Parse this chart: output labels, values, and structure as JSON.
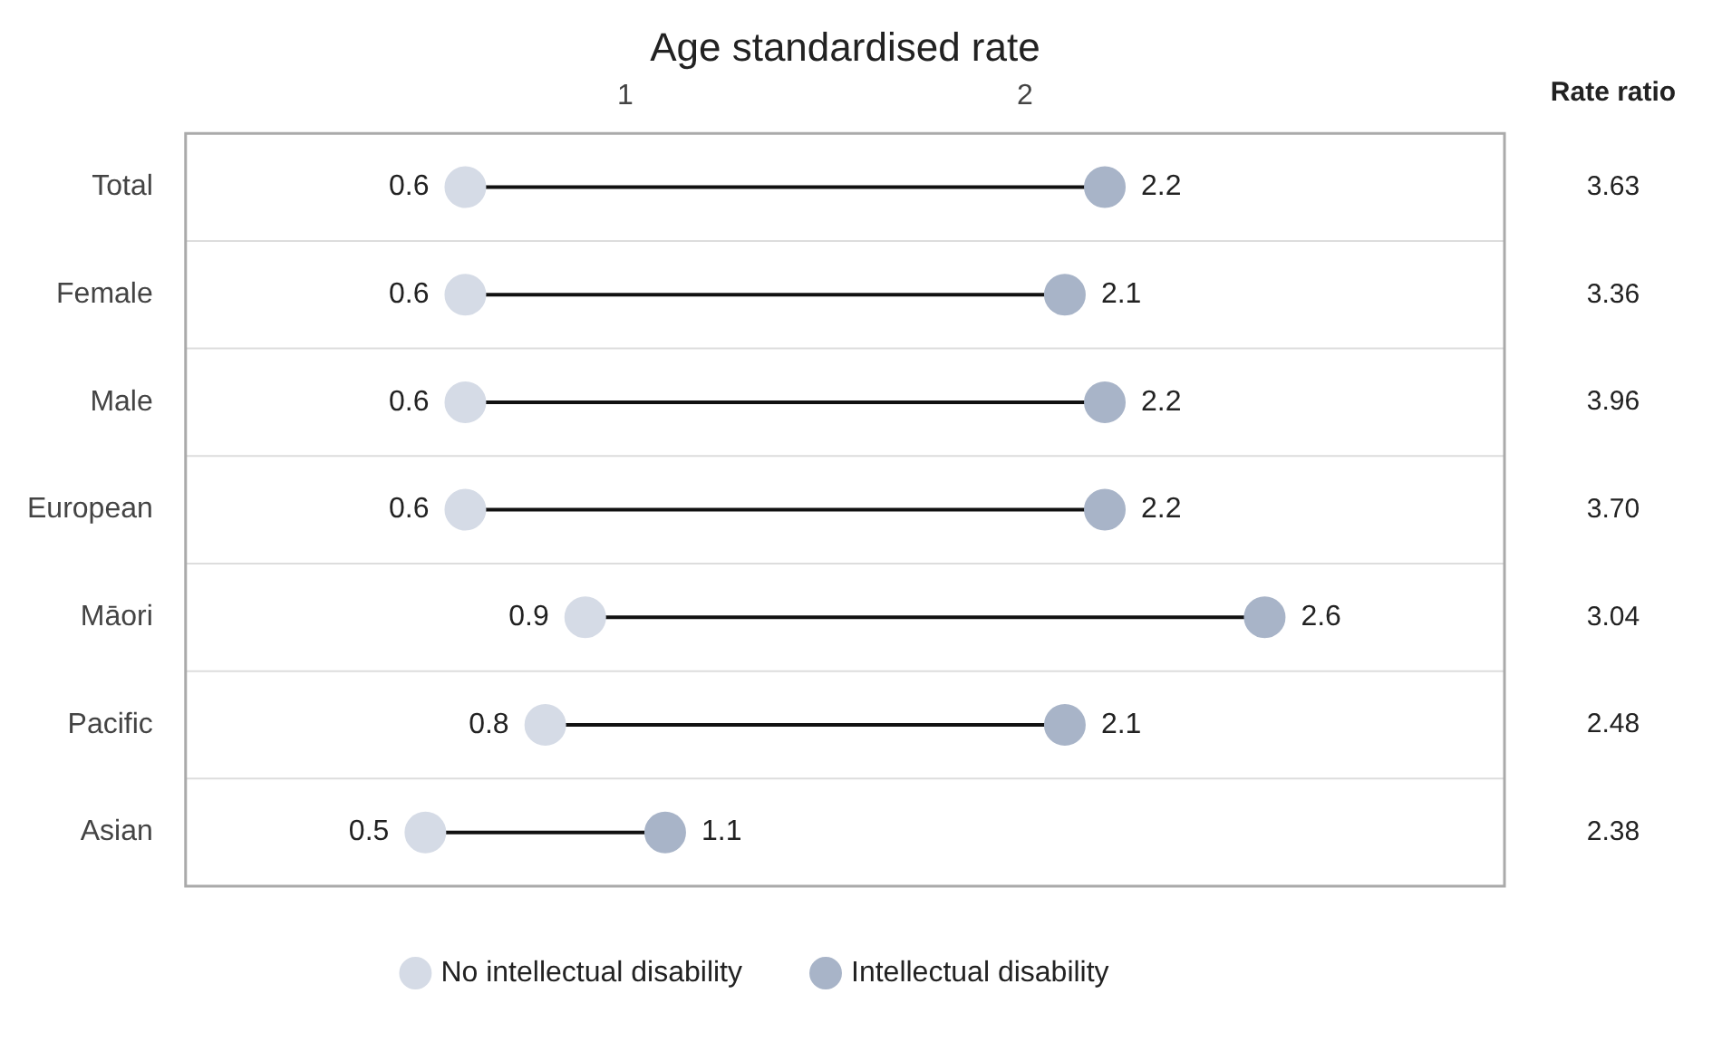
{
  "chart_data": {
    "type": "scatter",
    "xlabel": "Age standardised rate",
    "categories": [
      "Total",
      "Female",
      "Male",
      "European",
      "Māori",
      "Pacific",
      "Asian"
    ],
    "series": [
      {
        "name": "No intellectual disability",
        "color": "#d5dbe6",
        "values": [
          0.6,
          0.6,
          0.6,
          0.6,
          0.9,
          0.8,
          0.5
        ]
      },
      {
        "name": "Intellectual disability",
        "color": "#a8b4c8",
        "values": [
          2.2,
          2.1,
          2.2,
          2.2,
          2.6,
          2.1,
          1.1
        ]
      }
    ],
    "orientation": "horizontal",
    "xlim": [
      -0.1,
      3.2
    ],
    "xticks": [
      1,
      2
    ],
    "grid": "y",
    "legend": "bottom",
    "marker": "circle",
    "data_labels": true,
    "annotations": [
      "Rate ratio",
      "3.63",
      "3.36",
      "3.96",
      "3.70",
      "3.04",
      "2.48",
      "2.38"
    ]
  }
}
